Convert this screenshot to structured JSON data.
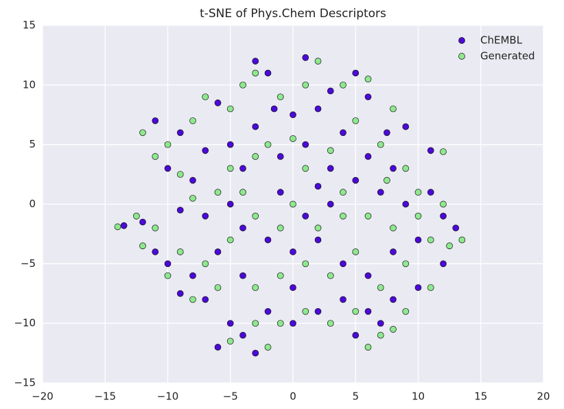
{
  "chart_data": {
    "type": "scatter",
    "title": "t-SNE of Phys.Chem Descriptors",
    "xlim": [
      -20,
      20
    ],
    "ylim": [
      -15,
      15
    ],
    "xticks": [
      {
        "value": -20,
        "label": "−20"
      },
      {
        "value": -15,
        "label": "−15"
      },
      {
        "value": -10,
        "label": "−10"
      },
      {
        "value": -5,
        "label": "−5"
      },
      0,
      5,
      10,
      15,
      20
    ],
    "yticks": [
      {
        "value": -15,
        "label": "−15"
      },
      {
        "value": -10,
        "label": "−10"
      },
      {
        "value": -5,
        "label": "−5"
      },
      0,
      5,
      10,
      15
    ],
    "grid": true,
    "legend": "upper-right",
    "series": [
      {
        "name": "ChEMBL",
        "color": "#4b0ad8",
        "x": [
          -9,
          -10,
          -8,
          -6,
          -5,
          -4,
          -7,
          -11,
          -3,
          -1,
          1,
          2,
          0,
          1,
          3,
          5,
          6,
          7.5,
          9,
          4,
          3,
          5,
          7,
          9,
          11,
          12,
          10,
          8,
          6,
          4,
          2,
          0,
          -2,
          -4,
          -6,
          -8,
          -10,
          -11,
          -9,
          -7,
          -4,
          -2,
          -4,
          -5,
          -6,
          -3,
          0,
          2,
          4,
          6,
          8,
          10,
          12,
          13,
          11,
          -12,
          -13.5,
          -1,
          1,
          3,
          -5,
          -2,
          -3,
          -1.5,
          6,
          8,
          2,
          0,
          5,
          7,
          -9,
          -7
        ],
        "values": [
          6,
          3,
          2,
          8.5,
          5,
          3,
          4.5,
          7,
          6.5,
          4,
          5,
          8,
          7.5,
          12.3,
          9.5,
          11,
          9,
          6,
          6.5,
          6,
          3,
          2,
          1,
          0,
          1,
          -1,
          -3,
          -4,
          -6,
          -5,
          -3,
          -4,
          -3,
          -2,
          -4,
          -6,
          -5,
          -4,
          -7.5,
          -8,
          -6,
          -9,
          -11,
          -10,
          -12,
          -12.5,
          -10,
          -9,
          -8,
          -9,
          -8,
          -7,
          -5,
          -2,
          4.5,
          -1.5,
          -1.8,
          1,
          -1,
          0,
          0,
          11,
          12,
          8,
          4,
          3,
          1.5,
          -7,
          -11,
          -10,
          -0.5,
          -1
        ]
      },
      {
        "name": "Generated",
        "color": "#8ee88e",
        "x": [
          -10,
          -9,
          -8,
          -7,
          -5,
          -5,
          -3,
          -12,
          -11,
          -6,
          -2,
          0,
          1,
          2,
          4,
          6,
          8,
          7,
          9,
          5,
          3,
          4,
          6,
          8,
          10,
          12,
          11,
          9,
          7,
          5,
          3,
          1,
          -1,
          -3,
          -5,
          -7,
          -9,
          -10,
          -8,
          -6,
          -3,
          -1,
          -3,
          -5,
          -2,
          1,
          3,
          5,
          7,
          9,
          11,
          12.5,
          13.5,
          -12.5,
          -11,
          -14,
          0,
          2,
          4,
          -4,
          -3,
          -4,
          -1,
          7.5,
          10,
          1,
          -1,
          6,
          8,
          -8,
          12,
          -12
        ],
        "values": [
          5,
          2.5,
          7,
          9,
          8,
          3,
          4,
          6,
          4,
          1,
          5,
          5.5,
          10,
          12,
          10,
          10.5,
          8,
          5,
          3,
          7,
          4.5,
          1,
          -1,
          -2,
          1,
          0,
          -3,
          -5,
          -7,
          -4,
          -6,
          -5,
          -2,
          -1,
          -3,
          -5,
          -4,
          -6,
          -8,
          -7,
          -7,
          -10,
          -10,
          -11.5,
          -12,
          -9,
          -10,
          -9,
          -11,
          -9,
          -7,
          -3.5,
          -3,
          -1,
          -2,
          -1.9,
          0,
          -2,
          -1,
          1,
          11,
          10,
          9,
          2,
          -1,
          3,
          -6,
          -12,
          -10.5,
          0.5,
          4.4,
          -3.5
        ]
      }
    ]
  }
}
